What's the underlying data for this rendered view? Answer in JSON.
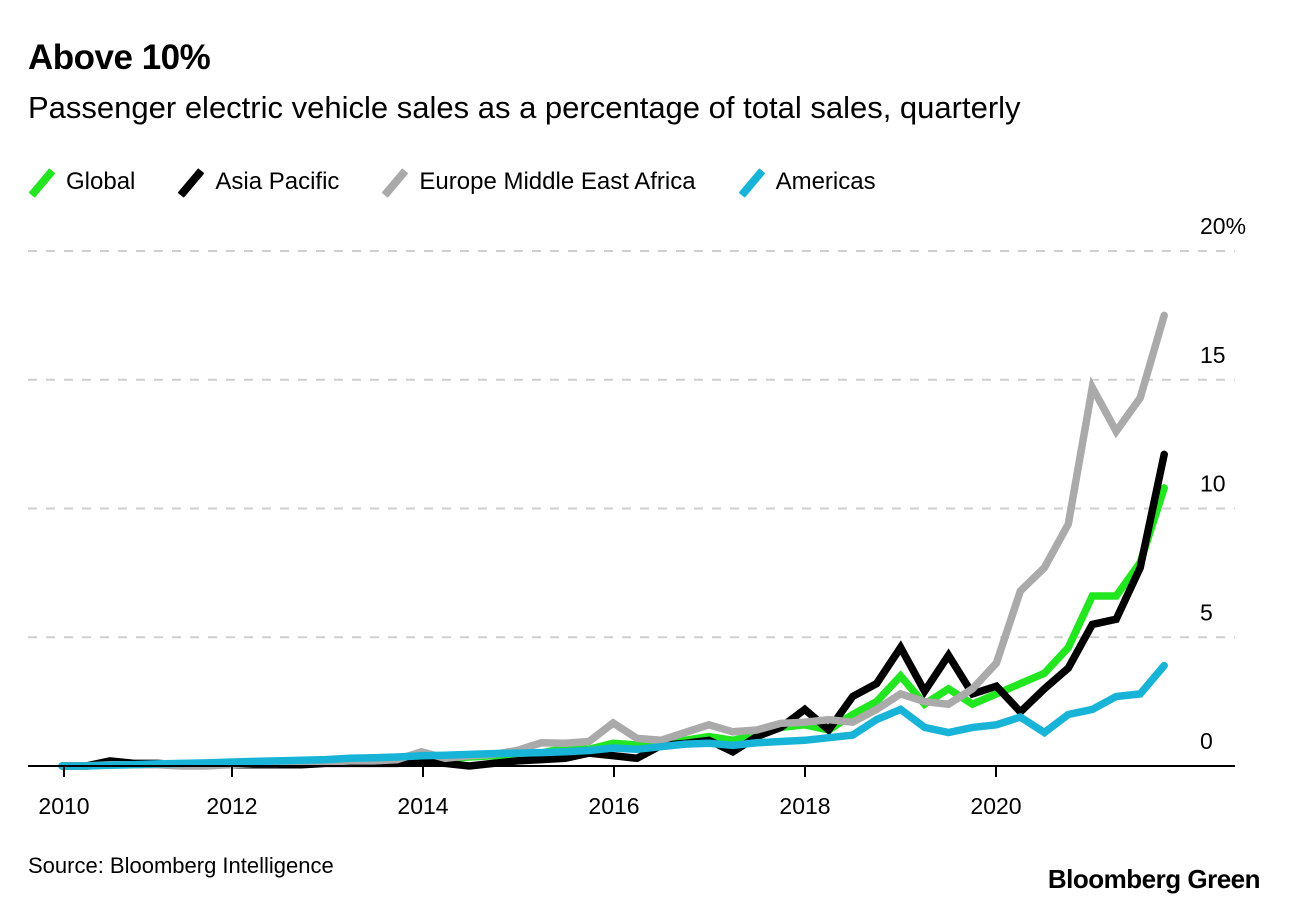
{
  "title": "Above 10%",
  "subtitle": "Passenger electric vehicle sales as a percentage of total sales, quarterly",
  "source": "Source: Bloomberg Intelligence",
  "brand": "Bloomberg Green",
  "legend": [
    {
      "label": "Global",
      "color": "#22e61f"
    },
    {
      "label": "Asia Pacific",
      "color": "#000000"
    },
    {
      "label": "Europe Middle East Africa",
      "color": "#aaaaaa"
    },
    {
      "label": "Americas",
      "color": "#18b4d8"
    }
  ],
  "chart_data": {
    "type": "line",
    "title": "Above 10%",
    "subtitle": "Passenger electric vehicle sales as a percentage of total sales, quarterly",
    "x_start": "2010 Q1",
    "x_end": "2021 Q3",
    "x_frequency": "quarterly",
    "x_ticks": [
      "2010",
      "2012",
      "2014",
      "2016",
      "2018",
      "2020"
    ],
    "y_ticks": [
      {
        "value": 0,
        "label": "0"
      },
      {
        "value": 5,
        "label": "5"
      },
      {
        "value": 10,
        "label": "10"
      },
      {
        "value": 15,
        "label": "15"
      },
      {
        "value": 20,
        "label": "20%"
      }
    ],
    "ylim": [
      0,
      20
    ],
    "grid": "horizontal dashed",
    "legend_position": "top-left",
    "series": [
      {
        "name": "Global",
        "color": "#22e61f",
        "values": [
          0,
          0,
          0.05,
          0.05,
          0.05,
          0.05,
          0.05,
          0.1,
          0.1,
          0.1,
          0.15,
          0.15,
          0.2,
          0.2,
          0.25,
          0.3,
          0.3,
          0.35,
          0.4,
          0.45,
          0.5,
          0.7,
          0.65,
          0.88,
          0.82,
          0.85,
          1.0,
          1.14,
          1.0,
          1.2,
          1.5,
          1.6,
          1.4,
          2.0,
          2.5,
          3.5,
          2.4,
          3.0,
          2.4,
          2.8,
          3.2,
          3.6,
          4.6,
          6.6,
          6.6,
          7.9,
          10.8
        ]
      },
      {
        "name": "Asia Pacific",
        "color": "#000000",
        "values": [
          0,
          0,
          0.2,
          0.1,
          0.1,
          0.05,
          0.05,
          0.05,
          0.05,
          0.05,
          0.05,
          0.1,
          0.1,
          0.1,
          0.1,
          0.15,
          0.1,
          0.0,
          0.1,
          0.2,
          0.25,
          0.3,
          0.5,
          0.4,
          0.3,
          0.8,
          0.88,
          1.0,
          0.55,
          1.14,
          1.5,
          2.2,
          1.4,
          2.7,
          3.2,
          4.6,
          2.9,
          4.3,
          2.8,
          3.1,
          2.1,
          3.0,
          3.8,
          5.5,
          5.7,
          7.7,
          12.1
        ]
      },
      {
        "name": "Europe Middle East Africa",
        "color": "#aaaaaa",
        "values": [
          0,
          0,
          0.05,
          0.05,
          0.05,
          0,
          0,
          0.05,
          0.1,
          0.1,
          0.15,
          0.15,
          0.2,
          0.2,
          0.25,
          0.55,
          0.3,
          0.4,
          0.45,
          0.6,
          0.9,
          0.88,
          0.95,
          1.67,
          1.07,
          1.0,
          1.3,
          1.6,
          1.33,
          1.4,
          1.66,
          1.7,
          1.8,
          1.7,
          2.2,
          2.8,
          2.5,
          2.4,
          3.0,
          4.0,
          6.8,
          7.7,
          9.4,
          14.7,
          13.0,
          14.3,
          17.5
        ]
      },
      {
        "name": "Americas",
        "color": "#18b4d8",
        "values": [
          0,
          0,
          0.03,
          0.05,
          0.08,
          0.1,
          0.12,
          0.15,
          0.18,
          0.2,
          0.22,
          0.25,
          0.3,
          0.32,
          0.35,
          0.4,
          0.42,
          0.45,
          0.48,
          0.5,
          0.52,
          0.55,
          0.6,
          0.7,
          0.65,
          0.75,
          0.85,
          0.88,
          0.8,
          0.9,
          0.95,
          1.0,
          1.1,
          1.2,
          1.8,
          2.2,
          1.5,
          1.3,
          1.5,
          1.6,
          1.9,
          1.3,
          2.0,
          2.2,
          2.7,
          2.8,
          3.9
        ]
      }
    ]
  }
}
